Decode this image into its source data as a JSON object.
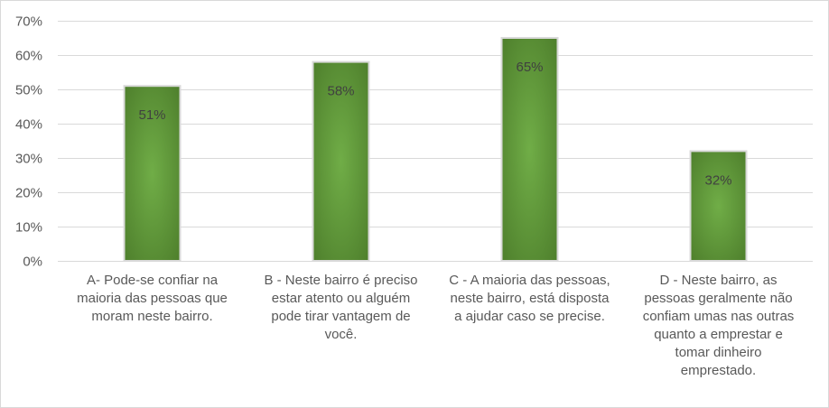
{
  "chart_data": {
    "type": "bar",
    "categories": [
      "A- Pode-se confiar na maioria das pessoas que moram neste bairro.",
      "B - Neste bairro é preciso estar atento ou alguém pode tirar vantagem de você.",
      "C - A maioria das pessoas, neste bairro, está disposta a ajudar caso se precise.",
      "D - Neste bairro, as pessoas geralmente não confiam umas nas outras quanto a emprestar e tomar dinheiro emprestado."
    ],
    "category_lines": [
      [
        "A- Pode-se confiar na",
        "maioria das pessoas que",
        "moram neste bairro."
      ],
      [
        "B - Neste bairro é preciso",
        "estar atento ou alguém",
        "pode tirar vantagem de",
        "você."
      ],
      [
        "C - A maioria das pessoas,",
        "neste bairro, está disposta",
        "a ajudar caso se precise."
      ],
      [
        "D - Neste bairro, as",
        "pessoas geralmente não",
        "confiam umas nas outras",
        "quanto a emprestar  e",
        "tomar dinheiro",
        "emprestado."
      ]
    ],
    "values": [
      51,
      58,
      65,
      32
    ],
    "data_labels": [
      "51%",
      "58%",
      "65%",
      "32%"
    ],
    "ylim": [
      0,
      70
    ],
    "yticks": [
      0,
      10,
      20,
      30,
      40,
      50,
      60,
      70
    ],
    "ytick_labels": [
      "0%",
      "10%",
      "20%",
      "30%",
      "40%",
      "50%",
      "60%",
      "70%"
    ],
    "grid": true,
    "legend": "none",
    "colors": {
      "bar_center": "#70ad47",
      "bar_edge": "#4e7f2c",
      "bar_border": "#d9d9d9",
      "gridline": "#d9d9d9"
    }
  }
}
